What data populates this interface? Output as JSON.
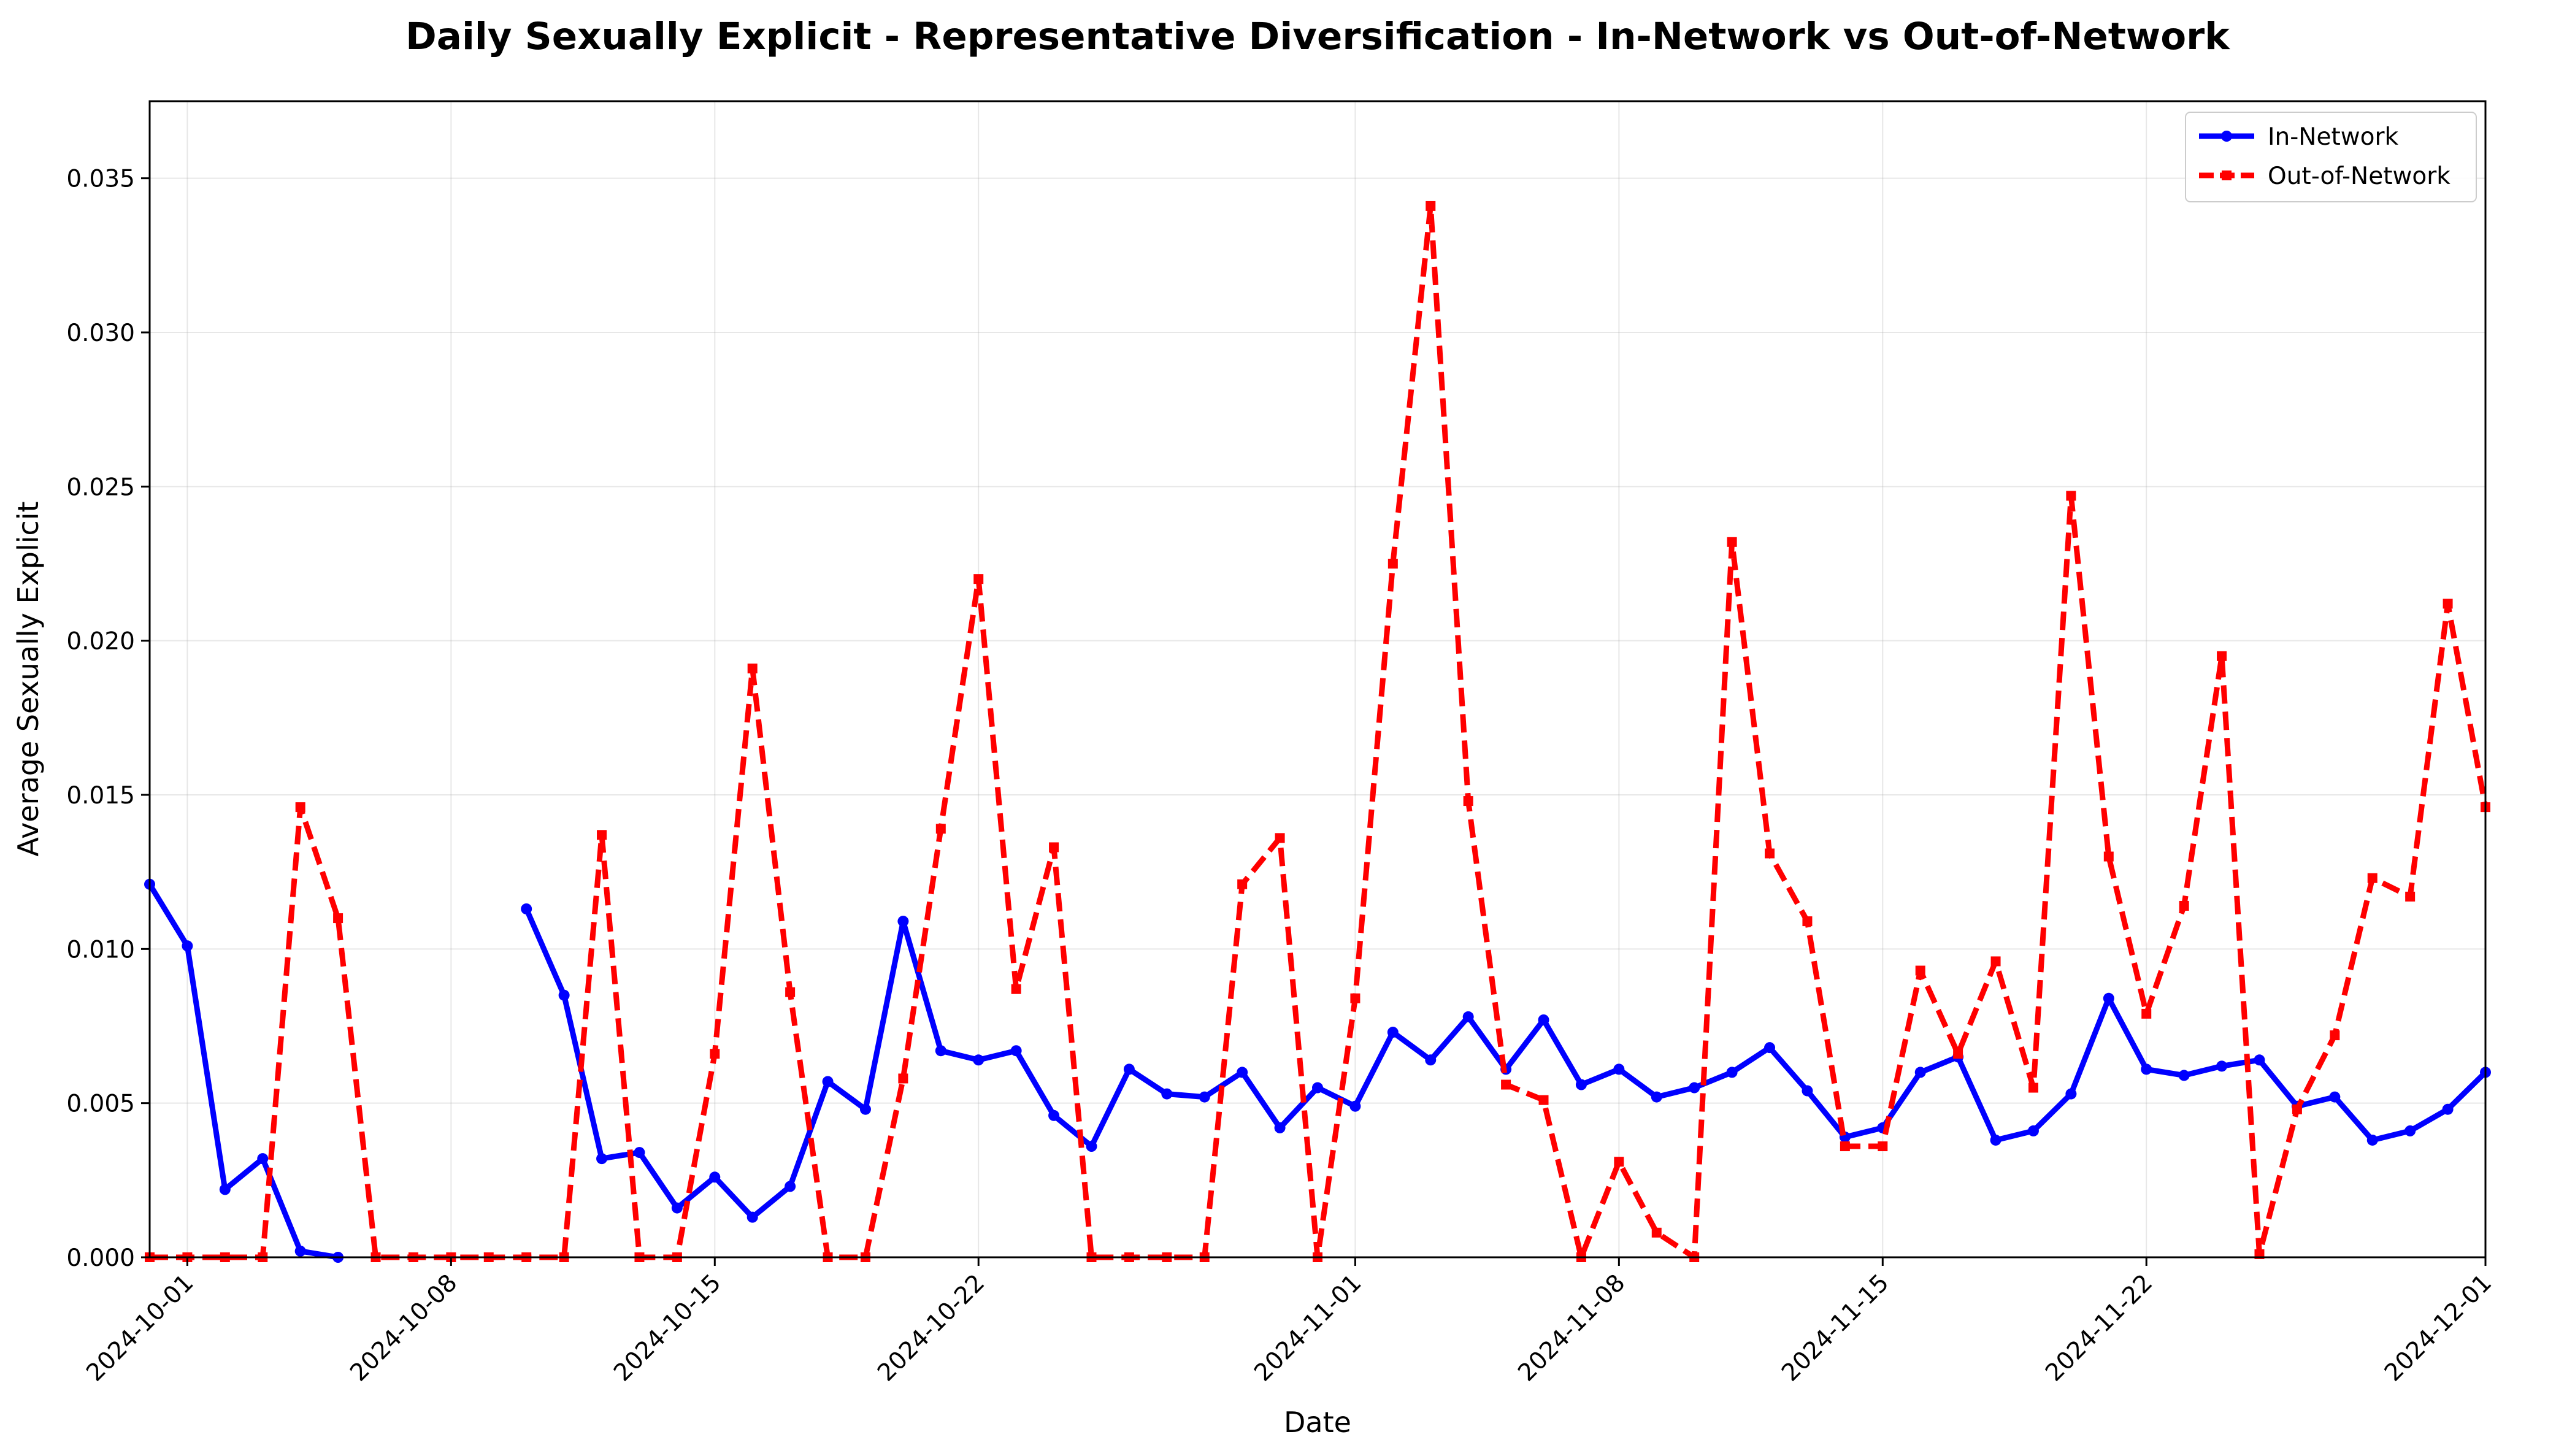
{
  "chart_data": {
    "type": "line",
    "title": "Daily Sexually Explicit - Representative Diversification - In-Network vs Out-of-Network",
    "xlabel": "Date",
    "ylabel": "Average Sexually Explicit",
    "xlim": [
      "2024-09-30",
      "2024-12-01"
    ],
    "ylim": [
      0,
      0.0375
    ],
    "x_ticks": [
      "2024-10-01",
      "2024-10-08",
      "2024-10-15",
      "2024-10-22",
      "2024-11-01",
      "2024-11-08",
      "2024-11-15",
      "2024-11-22",
      "2024-12-01"
    ],
    "y_ticks": [
      "0.000",
      "0.005",
      "0.010",
      "0.015",
      "0.020",
      "0.025",
      "0.030",
      "0.035"
    ],
    "grid": true,
    "legend_position": "top-right",
    "series": [
      {
        "name": "In-Network",
        "color": "#0000ff",
        "style": "solid",
        "marker": "circle",
        "points": [
          [
            "2024-09-30",
            0.0121
          ],
          [
            "2024-10-01",
            0.0101
          ],
          [
            "2024-10-02",
            0.0022
          ],
          [
            "2024-10-03",
            0.0032
          ],
          [
            "2024-10-04",
            0.0002
          ],
          [
            "2024-10-05",
            0.0
          ],
          [
            "2024-10-10",
            0.0113
          ],
          [
            "2024-10-11",
            0.0085
          ],
          [
            "2024-10-12",
            0.0032
          ],
          [
            "2024-10-13",
            0.0034
          ],
          [
            "2024-10-14",
            0.0016
          ],
          [
            "2024-10-15",
            0.0026
          ],
          [
            "2024-10-16",
            0.0013
          ],
          [
            "2024-10-17",
            0.0023
          ],
          [
            "2024-10-18",
            0.0057
          ],
          [
            "2024-10-19",
            0.0048
          ],
          [
            "2024-10-20",
            0.0109
          ],
          [
            "2024-10-21",
            0.0067
          ],
          [
            "2024-10-22",
            0.0064
          ],
          [
            "2024-10-23",
            0.0067
          ],
          [
            "2024-10-24",
            0.0046
          ],
          [
            "2024-10-25",
            0.0036
          ],
          [
            "2024-10-26",
            0.0061
          ],
          [
            "2024-10-27",
            0.0053
          ],
          [
            "2024-10-28",
            0.0052
          ],
          [
            "2024-10-29",
            0.006
          ],
          [
            "2024-10-30",
            0.0042
          ],
          [
            "2024-10-31",
            0.0055
          ],
          [
            "2024-11-01",
            0.0049
          ],
          [
            "2024-11-02",
            0.0073
          ],
          [
            "2024-11-03",
            0.0064
          ],
          [
            "2024-11-04",
            0.0078
          ],
          [
            "2024-11-05",
            0.0061
          ],
          [
            "2024-11-06",
            0.0077
          ],
          [
            "2024-11-07",
            0.0056
          ],
          [
            "2024-11-08",
            0.0061
          ],
          [
            "2024-11-09",
            0.0052
          ],
          [
            "2024-11-10",
            0.0055
          ],
          [
            "2024-11-11",
            0.006
          ],
          [
            "2024-11-12",
            0.0068
          ],
          [
            "2024-11-13",
            0.0054
          ],
          [
            "2024-11-14",
            0.0039
          ],
          [
            "2024-11-15",
            0.0042
          ],
          [
            "2024-11-16",
            0.006
          ],
          [
            "2024-11-17",
            0.0065
          ],
          [
            "2024-11-18",
            0.0038
          ],
          [
            "2024-11-19",
            0.0041
          ],
          [
            "2024-11-20",
            0.0053
          ],
          [
            "2024-11-21",
            0.0084
          ],
          [
            "2024-11-22",
            0.0061
          ],
          [
            "2024-11-23",
            0.0059
          ],
          [
            "2024-11-24",
            0.0062
          ],
          [
            "2024-11-25",
            0.0064
          ],
          [
            "2024-11-26",
            0.0049
          ],
          [
            "2024-11-27",
            0.0052
          ],
          [
            "2024-11-28",
            0.0038
          ],
          [
            "2024-11-29",
            0.0041
          ],
          [
            "2024-11-30",
            0.0048
          ],
          [
            "2024-12-01",
            0.006
          ]
        ]
      },
      {
        "name": "Out-of-Network",
        "color": "#ff0000",
        "style": "dashed",
        "marker": "square",
        "points": [
          [
            "2024-09-30",
            0.0
          ],
          [
            "2024-10-01",
            0.0
          ],
          [
            "2024-10-02",
            0.0
          ],
          [
            "2024-10-03",
            0.0
          ],
          [
            "2024-10-04",
            0.0146
          ],
          [
            "2024-10-05",
            0.011
          ],
          [
            "2024-10-06",
            0.0
          ],
          [
            "2024-10-07",
            0.0
          ],
          [
            "2024-10-08",
            0.0
          ],
          [
            "2024-10-09",
            0.0
          ],
          [
            "2024-10-10",
            0.0
          ],
          [
            "2024-10-11",
            0.0
          ],
          [
            "2024-10-12",
            0.0137
          ],
          [
            "2024-10-13",
            0.0
          ],
          [
            "2024-10-14",
            0.0
          ],
          [
            "2024-10-15",
            0.0066
          ],
          [
            "2024-10-16",
            0.0191
          ],
          [
            "2024-10-17",
            0.0086
          ],
          [
            "2024-10-18",
            0.0
          ],
          [
            "2024-10-19",
            0.0
          ],
          [
            "2024-10-20",
            0.0058
          ],
          [
            "2024-10-21",
            0.0139
          ],
          [
            "2024-10-22",
            0.022
          ],
          [
            "2024-10-23",
            0.0087
          ],
          [
            "2024-10-24",
            0.0133
          ],
          [
            "2024-10-25",
            0.0
          ],
          [
            "2024-10-26",
            0.0
          ],
          [
            "2024-10-27",
            0.0
          ],
          [
            "2024-10-28",
            0.0
          ],
          [
            "2024-10-29",
            0.0121
          ],
          [
            "2024-10-30",
            0.0136
          ],
          [
            "2024-10-31",
            0.0
          ],
          [
            "2024-11-01",
            0.0084
          ],
          [
            "2024-11-02",
            0.0225
          ],
          [
            "2024-11-03",
            0.0341
          ],
          [
            "2024-11-04",
            0.0148
          ],
          [
            "2024-11-05",
            0.0056
          ],
          [
            "2024-11-06",
            0.0051
          ],
          [
            "2024-11-07",
            0.0
          ],
          [
            "2024-11-08",
            0.0031
          ],
          [
            "2024-11-09",
            0.0008
          ],
          [
            "2024-11-10",
            0.0
          ],
          [
            "2024-11-11",
            0.0232
          ],
          [
            "2024-11-12",
            0.0131
          ],
          [
            "2024-11-13",
            0.0109
          ],
          [
            "2024-11-14",
            0.0036
          ],
          [
            "2024-11-15",
            0.0036
          ],
          [
            "2024-11-16",
            0.0093
          ],
          [
            "2024-11-17",
            0.0066
          ],
          [
            "2024-11-18",
            0.0096
          ],
          [
            "2024-11-19",
            0.0055
          ],
          [
            "2024-11-20",
            0.0247
          ],
          [
            "2024-11-21",
            0.013
          ],
          [
            "2024-11-22",
            0.0079
          ],
          [
            "2024-11-23",
            0.0114
          ],
          [
            "2024-11-24",
            0.0195
          ],
          [
            "2024-11-25",
            0.0001
          ],
          [
            "2024-11-26",
            0.0048
          ],
          [
            "2024-11-27",
            0.0072
          ],
          [
            "2024-11-28",
            0.0123
          ],
          [
            "2024-11-29",
            0.0117
          ],
          [
            "2024-11-30",
            0.0212
          ],
          [
            "2024-12-01",
            0.0146
          ]
        ]
      }
    ]
  }
}
